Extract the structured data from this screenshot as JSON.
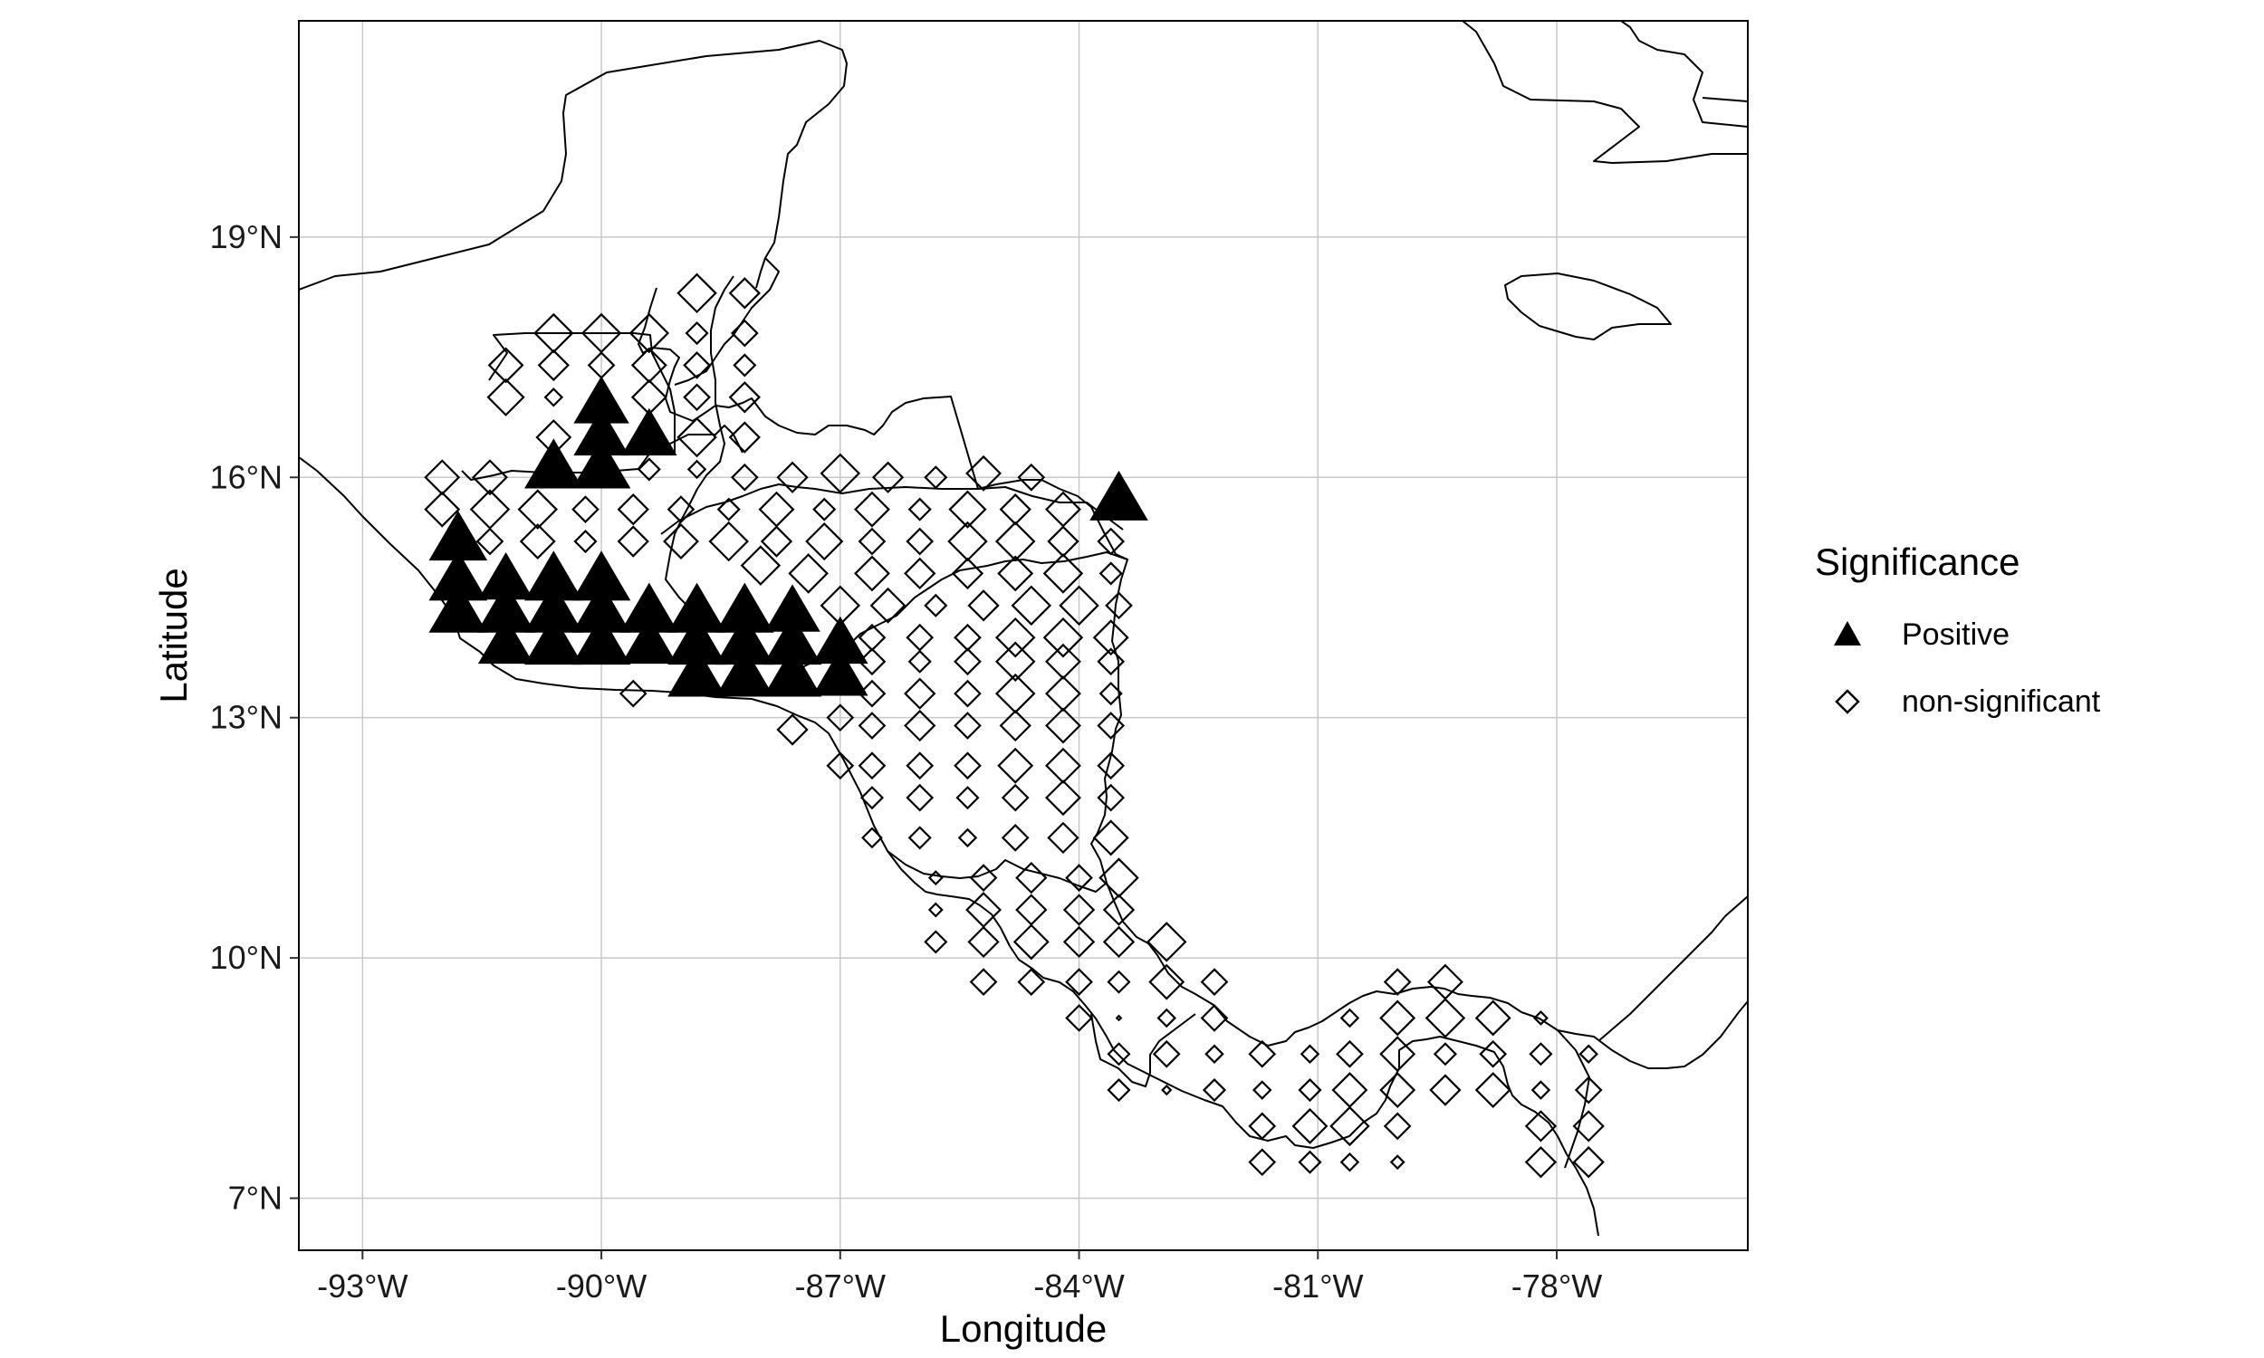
{
  "chart_data": {
    "type": "scatter",
    "title": "",
    "xlabel": "Longitude",
    "ylabel": "Latitude",
    "xlim": [
      -93.8,
      -75.6
    ],
    "ylim": [
      6.35,
      21.7
    ],
    "grid": true,
    "x_ticks": [
      {
        "value": -93,
        "label": "-93°W"
      },
      {
        "value": -90,
        "label": "-90°W"
      },
      {
        "value": -87,
        "label": "-87°W"
      },
      {
        "value": -84,
        "label": "-84°W"
      },
      {
        "value": -81,
        "label": "-81°W"
      },
      {
        "value": -78,
        "label": "-78°W"
      }
    ],
    "y_ticks": [
      {
        "value": 7,
        "label": "7°N"
      },
      {
        "value": 10,
        "label": "10°N"
      },
      {
        "value": 13,
        "label": "13°N"
      },
      {
        "value": 16,
        "label": "16°N"
      },
      {
        "value": 19,
        "label": "19°N"
      }
    ],
    "legend": {
      "title": "Significance",
      "placement": "right",
      "entries": [
        {
          "label": "Positive",
          "shape": "filled-triangle"
        },
        {
          "label": "non-significant",
          "shape": "open-diamond"
        }
      ]
    },
    "series": [
      {
        "name": "Positive",
        "shape": "filled-triangle",
        "color": "#000000",
        "points": [
          [
            -90.6,
            16.1,
            1.0
          ],
          [
            -90.0,
            16.1,
            1.0
          ],
          [
            -90.0,
            16.5,
            0.95
          ],
          [
            -90.0,
            16.9,
            0.95
          ],
          [
            -89.4,
            16.5,
            0.95
          ],
          [
            -83.5,
            15.7,
            1.0
          ],
          [
            -91.8,
            15.2,
            1.0
          ],
          [
            -91.8,
            14.7,
            1.0
          ],
          [
            -91.8,
            14.3,
            1.0
          ],
          [
            -91.2,
            14.7,
            0.95
          ],
          [
            -91.2,
            14.3,
            1.0
          ],
          [
            -91.2,
            13.9,
            0.95
          ],
          [
            -90.6,
            14.7,
            1.0
          ],
          [
            -90.6,
            14.3,
            1.0
          ],
          [
            -90.6,
            13.9,
            1.0
          ],
          [
            -90.0,
            14.7,
            1.0
          ],
          [
            -90.0,
            14.3,
            1.0
          ],
          [
            -90.0,
            13.9,
            1.0
          ],
          [
            -89.4,
            14.3,
            1.0
          ],
          [
            -89.4,
            13.9,
            0.95
          ],
          [
            -88.8,
            14.3,
            1.0
          ],
          [
            -88.8,
            13.9,
            1.0
          ],
          [
            -88.8,
            13.5,
            1.0
          ],
          [
            -88.2,
            14.3,
            1.0
          ],
          [
            -88.2,
            13.9,
            1.0
          ],
          [
            -88.2,
            13.5,
            1.0
          ],
          [
            -87.6,
            14.3,
            0.95
          ],
          [
            -87.6,
            13.9,
            1.0
          ],
          [
            -87.6,
            13.5,
            1.0
          ],
          [
            -87.0,
            13.9,
            0.95
          ],
          [
            -87.0,
            13.5,
            0.95
          ]
        ]
      },
      {
        "name": "non-significant",
        "shape": "open-diamond",
        "color": "#000000",
        "points": [
          [
            -88.8,
            18.3,
            0.9
          ],
          [
            -88.2,
            18.3,
            0.7
          ],
          [
            -88.8,
            17.8,
            0.5
          ],
          [
            -88.2,
            17.8,
            0.6
          ],
          [
            -90.6,
            17.8,
            0.9
          ],
          [
            -90.0,
            17.8,
            0.9
          ],
          [
            -89.4,
            17.8,
            0.9
          ],
          [
            -91.2,
            17.4,
            0.8
          ],
          [
            -90.6,
            17.4,
            0.7
          ],
          [
            -90.0,
            17.4,
            0.6
          ],
          [
            -89.4,
            17.4,
            0.8
          ],
          [
            -88.8,
            17.4,
            0.6
          ],
          [
            -88.2,
            17.4,
            0.5
          ],
          [
            -91.2,
            17.0,
            0.85
          ],
          [
            -90.6,
            17.0,
            0.4
          ],
          [
            -89.4,
            17.0,
            0.8
          ],
          [
            -88.8,
            17.0,
            0.6
          ],
          [
            -88.2,
            17.0,
            0.7
          ],
          [
            -90.6,
            16.5,
            0.8
          ],
          [
            -89.4,
            16.1,
            0.5
          ],
          [
            -88.8,
            16.5,
            0.9
          ],
          [
            -88.2,
            16.5,
            0.7
          ],
          [
            -88.8,
            16.1,
            0.4
          ],
          [
            -88.2,
            16.0,
            0.6
          ],
          [
            -87.6,
            16.0,
            0.7
          ],
          [
            -87.0,
            16.05,
            0.9
          ],
          [
            -86.4,
            16.0,
            0.7
          ],
          [
            -85.8,
            16.0,
            0.5
          ],
          [
            -85.2,
            16.05,
            0.8
          ],
          [
            -84.6,
            16.0,
            0.6
          ],
          [
            -92.0,
            16.0,
            0.8
          ],
          [
            -91.4,
            16.0,
            0.8
          ],
          [
            -92.0,
            15.6,
            0.8
          ],
          [
            -91.4,
            15.6,
            0.9
          ],
          [
            -90.8,
            15.6,
            0.9
          ],
          [
            -90.2,
            15.6,
            0.6
          ],
          [
            -89.6,
            15.6,
            0.7
          ],
          [
            -89.0,
            15.6,
            0.6
          ],
          [
            -88.4,
            15.6,
            0.5
          ],
          [
            -87.8,
            15.6,
            0.8
          ],
          [
            -87.2,
            15.6,
            0.5
          ],
          [
            -86.6,
            15.6,
            0.8
          ],
          [
            -86.0,
            15.6,
            0.5
          ],
          [
            -85.4,
            15.6,
            0.85
          ],
          [
            -84.8,
            15.6,
            0.7
          ],
          [
            -84.2,
            15.6,
            0.8
          ],
          [
            -91.4,
            15.2,
            0.6
          ],
          [
            -90.8,
            15.2,
            0.8
          ],
          [
            -90.2,
            15.2,
            0.5
          ],
          [
            -89.6,
            15.2,
            0.7
          ],
          [
            -89.0,
            15.2,
            0.8
          ],
          [
            -88.4,
            15.2,
            0.9
          ],
          [
            -87.8,
            15.2,
            0.7
          ],
          [
            -87.2,
            15.2,
            0.85
          ],
          [
            -86.6,
            15.2,
            0.6
          ],
          [
            -86.0,
            15.2,
            0.6
          ],
          [
            -85.4,
            15.2,
            0.9
          ],
          [
            -84.8,
            15.2,
            0.9
          ],
          [
            -84.2,
            15.2,
            0.7
          ],
          [
            -83.6,
            15.2,
            0.6
          ],
          [
            -88.0,
            14.9,
            0.9
          ],
          [
            -87.4,
            14.8,
            0.9
          ],
          [
            -86.6,
            14.8,
            0.8
          ],
          [
            -86.0,
            14.8,
            0.7
          ],
          [
            -85.4,
            14.8,
            0.7
          ],
          [
            -84.8,
            14.8,
            0.8
          ],
          [
            -84.2,
            14.8,
            0.9
          ],
          [
            -83.6,
            14.8,
            0.5
          ],
          [
            -87.0,
            14.4,
            0.9
          ],
          [
            -86.4,
            14.4,
            0.8
          ],
          [
            -85.8,
            14.4,
            0.5
          ],
          [
            -85.2,
            14.4,
            0.7
          ],
          [
            -84.6,
            14.4,
            0.9
          ],
          [
            -84.0,
            14.4,
            0.9
          ],
          [
            -83.5,
            14.4,
            0.6
          ],
          [
            -86.6,
            14.0,
            0.6
          ],
          [
            -86.0,
            14.0,
            0.6
          ],
          [
            -85.4,
            14.0,
            0.6
          ],
          [
            -84.8,
            14.0,
            0.9
          ],
          [
            -84.2,
            14.0,
            0.9
          ],
          [
            -83.6,
            14.0,
            0.8
          ],
          [
            -89.6,
            13.3,
            0.6
          ],
          [
            -86.6,
            13.7,
            0.6
          ],
          [
            -86.0,
            13.7,
            0.5
          ],
          [
            -85.4,
            13.7,
            0.6
          ],
          [
            -84.8,
            13.7,
            0.9
          ],
          [
            -84.2,
            13.7,
            0.8
          ],
          [
            -83.6,
            13.7,
            0.6
          ],
          [
            -87.0,
            13.0,
            0.6
          ],
          [
            -86.6,
            13.3,
            0.6
          ],
          [
            -86.0,
            13.3,
            0.7
          ],
          [
            -85.4,
            13.3,
            0.6
          ],
          [
            -84.8,
            13.3,
            0.9
          ],
          [
            -84.2,
            13.3,
            0.8
          ],
          [
            -83.6,
            13.3,
            0.5
          ],
          [
            -87.6,
            12.85,
            0.7
          ],
          [
            -86.6,
            12.9,
            0.6
          ],
          [
            -86.0,
            12.9,
            0.7
          ],
          [
            -85.4,
            12.9,
            0.6
          ],
          [
            -84.8,
            12.9,
            0.7
          ],
          [
            -84.2,
            12.9,
            0.8
          ],
          [
            -83.6,
            12.9,
            0.6
          ],
          [
            -87.0,
            12.4,
            0.6
          ],
          [
            -86.6,
            12.4,
            0.6
          ],
          [
            -86.0,
            12.4,
            0.6
          ],
          [
            -85.4,
            12.4,
            0.6
          ],
          [
            -84.8,
            12.4,
            0.8
          ],
          [
            -84.2,
            12.4,
            0.8
          ],
          [
            -83.6,
            12.4,
            0.6
          ],
          [
            -86.6,
            12.0,
            0.5
          ],
          [
            -86.0,
            12.0,
            0.6
          ],
          [
            -85.4,
            12.0,
            0.5
          ],
          [
            -84.8,
            12.0,
            0.6
          ],
          [
            -84.2,
            12.0,
            0.8
          ],
          [
            -83.6,
            12.0,
            0.6
          ],
          [
            -86.6,
            11.5,
            0.45
          ],
          [
            -86.0,
            11.5,
            0.5
          ],
          [
            -85.4,
            11.5,
            0.4
          ],
          [
            -84.8,
            11.5,
            0.6
          ],
          [
            -84.2,
            11.5,
            0.7
          ],
          [
            -83.6,
            11.5,
            0.8
          ],
          [
            -85.8,
            11.0,
            0.3
          ],
          [
            -85.2,
            11.0,
            0.6
          ],
          [
            -84.6,
            11.0,
            0.7
          ],
          [
            -84.0,
            11.0,
            0.6
          ],
          [
            -83.5,
            11.0,
            0.9
          ],
          [
            -85.8,
            10.6,
            0.3
          ],
          [
            -85.2,
            10.6,
            0.8
          ],
          [
            -84.6,
            10.6,
            0.7
          ],
          [
            -84.0,
            10.6,
            0.7
          ],
          [
            -83.5,
            10.6,
            0.7
          ],
          [
            -85.8,
            10.2,
            0.5
          ],
          [
            -85.2,
            10.2,
            0.7
          ],
          [
            -84.6,
            10.2,
            0.8
          ],
          [
            -84.0,
            10.2,
            0.7
          ],
          [
            -83.5,
            10.2,
            0.7
          ],
          [
            -82.9,
            10.2,
            0.9
          ],
          [
            -85.2,
            9.7,
            0.6
          ],
          [
            -84.6,
            9.7,
            0.6
          ],
          [
            -84.0,
            9.7,
            0.6
          ],
          [
            -83.5,
            9.7,
            0.5
          ],
          [
            -82.9,
            9.7,
            0.8
          ],
          [
            -82.3,
            9.7,
            0.6
          ],
          [
            -80.0,
            9.7,
            0.6
          ],
          [
            -79.4,
            9.7,
            0.8
          ],
          [
            -84.0,
            9.25,
            0.6
          ],
          [
            -83.5,
            9.25,
            0.1
          ],
          [
            -82.9,
            9.25,
            0.4
          ],
          [
            -82.3,
            9.25,
            0.6
          ],
          [
            -80.6,
            9.25,
            0.4
          ],
          [
            -80.0,
            9.25,
            0.8
          ],
          [
            -79.4,
            9.25,
            0.9
          ],
          [
            -78.8,
            9.25,
            0.8
          ],
          [
            -78.2,
            9.25,
            0.3
          ],
          [
            -83.5,
            8.8,
            0.5
          ],
          [
            -82.9,
            8.8,
            0.6
          ],
          [
            -82.3,
            8.8,
            0.4
          ],
          [
            -81.7,
            8.8,
            0.6
          ],
          [
            -81.1,
            8.8,
            0.4
          ],
          [
            -80.6,
            8.8,
            0.6
          ],
          [
            -80.0,
            8.8,
            0.8
          ],
          [
            -79.4,
            8.8,
            0.5
          ],
          [
            -78.8,
            8.8,
            0.6
          ],
          [
            -78.2,
            8.8,
            0.5
          ],
          [
            -77.6,
            8.8,
            0.4
          ],
          [
            -83.5,
            8.35,
            0.5
          ],
          [
            -82.9,
            8.35,
            0.2
          ],
          [
            -82.3,
            8.35,
            0.5
          ],
          [
            -81.7,
            8.35,
            0.4
          ],
          [
            -81.1,
            8.35,
            0.5
          ],
          [
            -80.6,
            8.35,
            0.8
          ],
          [
            -80.0,
            8.35,
            0.8
          ],
          [
            -79.4,
            8.35,
            0.7
          ],
          [
            -78.8,
            8.35,
            0.8
          ],
          [
            -78.2,
            8.35,
            0.4
          ],
          [
            -77.6,
            8.35,
            0.6
          ],
          [
            -81.7,
            7.9,
            0.6
          ],
          [
            -81.1,
            7.9,
            0.8
          ],
          [
            -80.6,
            7.9,
            0.9
          ],
          [
            -80.0,
            7.9,
            0.6
          ],
          [
            -78.2,
            7.9,
            0.7
          ],
          [
            -77.6,
            7.9,
            0.7
          ],
          [
            -81.7,
            7.45,
            0.6
          ],
          [
            -81.1,
            7.45,
            0.5
          ],
          [
            -80.6,
            7.45,
            0.4
          ],
          [
            -80.0,
            7.45,
            0.3
          ],
          [
            -78.2,
            7.45,
            0.7
          ],
          [
            -77.6,
            7.45,
            0.7
          ]
        ]
      }
    ]
  }
}
